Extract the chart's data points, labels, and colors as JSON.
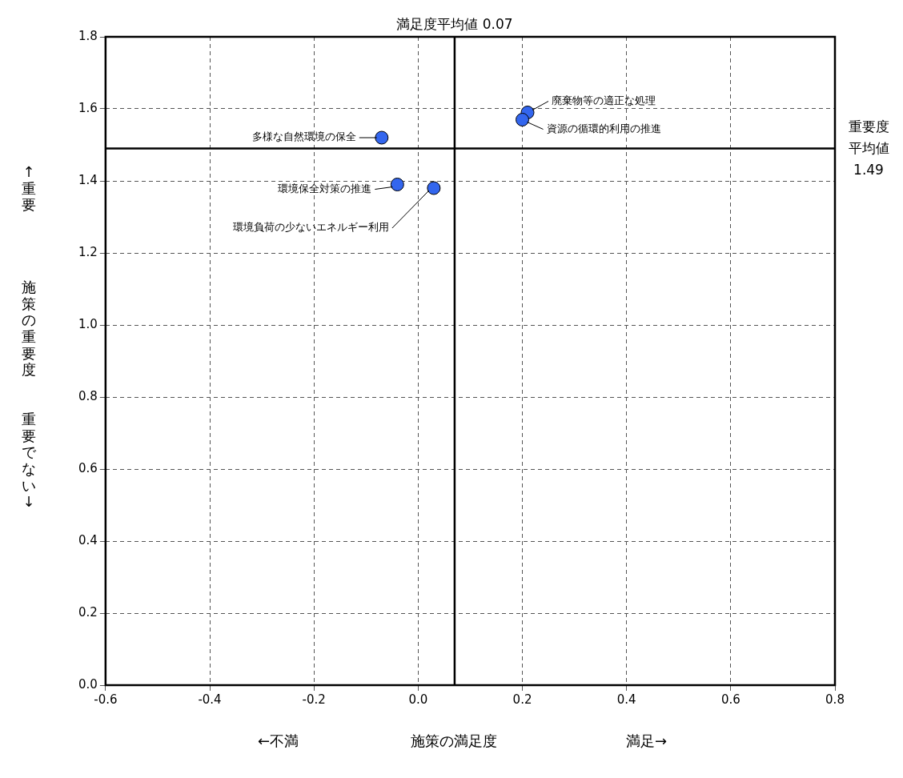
{
  "chart_data": {
    "type": "scatter",
    "xlabel": "施策の満足度",
    "ylabel": "施策の重要度",
    "series": [
      {
        "color": "#3366ee",
        "x": [
          -0.07,
          0.21,
          0.2,
          -0.04,
          0.03
        ],
        "values": [
          1.52,
          1.59,
          1.57,
          1.39,
          1.38
        ]
      }
    ],
    "xlim": [
      -0.6,
      0.8
    ],
    "xticks": [
      -0.6,
      -0.4,
      -0.2,
      {
        "value": 0,
        "label": "0.0"
      },
      0.2,
      0.4,
      0.6,
      0.8
    ],
    "ylim": [
      0,
      1.8
    ],
    "yticks": [
      {
        "value": 0,
        "label": "0.0"
      },
      0.2,
      0.4,
      0.6,
      0.8,
      {
        "value": 1,
        "label": "1.0"
      },
      1.2,
      1.4,
      1.6,
      1.8
    ],
    "grid": true,
    "legend": false,
    "marker": "circle",
    "ref_lines": [
      {
        "axis": "x",
        "value": 0.07,
        "label": "満足度平均値 0.07",
        "color": "#000000"
      },
      {
        "axis": "y",
        "value": 1.49,
        "label": "重要度平均値 1.49",
        "color": "#000000"
      }
    ],
    "annotations": [
      {
        "text": "多様な自然環境の保全",
        "x": -0.07,
        "y": 1.52
      },
      {
        "text": "廃棄物等の適正な処理",
        "x": 0.21,
        "y": 1.59
      },
      {
        "text": "資源の循環的利用の推進",
        "x": 0.2,
        "y": 1.57
      },
      {
        "text": "環境保全対策の推進",
        "x": -0.04,
        "y": 1.39
      },
      {
        "text": "環境負荷の少ないエネルギー利用",
        "x": 0.03,
        "y": 1.38
      },
      "←不満",
      "満足→",
      "↑重要",
      "重要でない↓"
    ]
  }
}
